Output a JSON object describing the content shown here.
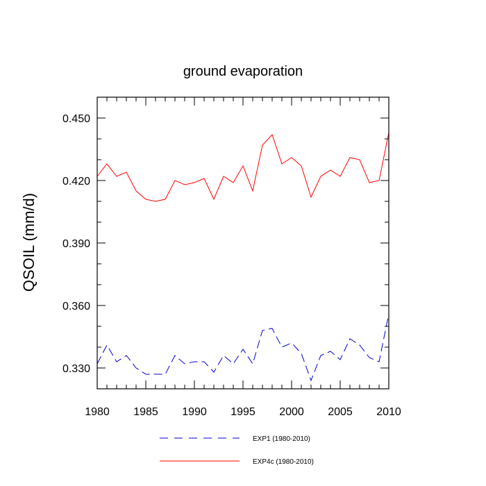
{
  "chart_data": {
    "type": "line",
    "title": "ground evaporation",
    "xlabel": "",
    "ylabel": "QSOIL  (mm/d)",
    "xlim": [
      1980,
      2010
    ],
    "ylim": [
      0.32,
      0.46
    ],
    "x_major_ticks": [
      1980,
      1985,
      1990,
      1995,
      2000,
      2005,
      2010
    ],
    "x_tick_labels": [
      "1980",
      "1985",
      "1990",
      "1995",
      "2000",
      "2005",
      "2010"
    ],
    "y_major_ticks": [
      0.33,
      0.36,
      0.39,
      0.42,
      0.45
    ],
    "y_tick_labels": [
      "0.330",
      "0.360",
      "0.390",
      "0.420",
      "0.450"
    ],
    "grid": false,
    "legend_position": "bottom",
    "x": [
      1980,
      1981,
      1982,
      1983,
      1984,
      1985,
      1986,
      1987,
      1988,
      1989,
      1990,
      1991,
      1992,
      1993,
      1994,
      1995,
      1996,
      1997,
      1998,
      1999,
      2000,
      2001,
      2002,
      2003,
      2004,
      2005,
      2006,
      2007,
      2008,
      2009,
      2010
    ],
    "series": [
      {
        "name": "EXP1 (1980-2010)",
        "color": "#0000cc",
        "dash": "dashed",
        "values": [
          0.332,
          0.341,
          0.333,
          0.336,
          0.33,
          0.327,
          0.327,
          0.327,
          0.336,
          0.332,
          0.333,
          0.333,
          0.328,
          0.336,
          0.332,
          0.339,
          0.332,
          0.348,
          0.349,
          0.34,
          0.342,
          0.337,
          0.324,
          0.336,
          0.338,
          0.334,
          0.344,
          0.341,
          0.335,
          0.333,
          0.356
        ]
      },
      {
        "name": "EXP4c (1980-2010)",
        "color": "#ff0000",
        "dash": "solid",
        "values": [
          0.422,
          0.428,
          0.422,
          0.424,
          0.415,
          0.411,
          0.41,
          0.411,
          0.42,
          0.418,
          0.419,
          0.421,
          0.411,
          0.422,
          0.419,
          0.427,
          0.415,
          0.437,
          0.442,
          0.428,
          0.431,
          0.427,
          0.412,
          0.422,
          0.425,
          0.422,
          0.431,
          0.43,
          0.419,
          0.42,
          0.443
        ]
      }
    ]
  }
}
